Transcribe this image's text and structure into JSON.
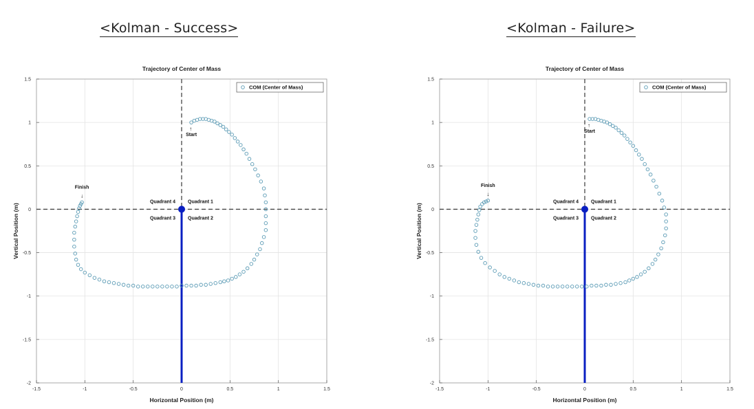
{
  "panels": [
    {
      "heading": "<Kolman - Success>"
    },
    {
      "heading": "<Kolman - Failure>"
    }
  ],
  "chart_data": [
    {
      "type": "scatter",
      "title": "Trajectory of Center of Mass",
      "xlabel": "Horizontal Position (m)",
      "ylabel": "Vertical Position (m)",
      "xlim": [
        -1.5,
        1.5
      ],
      "ylim": [
        -2,
        1.5
      ],
      "xticks": [
        -1.5,
        -1,
        -0.5,
        0,
        0.5,
        1,
        1.5
      ],
      "xtick_labels": [
        "-1.5",
        "-1",
        "-0.5",
        "0",
        "0.5",
        "1",
        "1.5"
      ],
      "yticks": [
        -2,
        -1.5,
        -1,
        -0.5,
        0,
        0.5,
        1,
        1.5
      ],
      "ytick_labels": [
        "-2",
        "-1.5",
        "-1",
        "-0.5",
        "0",
        "0.5",
        "1",
        "1.5"
      ],
      "grid": true,
      "legend": {
        "position": "top-right",
        "entries": [
          "COM (Center of Mass)"
        ]
      },
      "series_color": "#5b9bb5",
      "origin_color": "#0a1fc2",
      "axis_color": "#444444",
      "annotations": {
        "start_arrow": "↑",
        "start": "Start",
        "finish_arrow": "↓",
        "finish": "Finish",
        "q1": "Quadrant 1",
        "q2": "Quadrant 2",
        "q3": "Quadrant 3",
        "q4": "Quadrant 4"
      },
      "pole": {
        "x": 0,
        "y_from": 0,
        "y_to": -2
      },
      "series": [
        {
          "name": "COM (Center of Mass)",
          "x": [
            0.1,
            0.13,
            0.16,
            0.19,
            0.22,
            0.25,
            0.28,
            0.31,
            0.34,
            0.37,
            0.4,
            0.43,
            0.46,
            0.49,
            0.52,
            0.55,
            0.58,
            0.61,
            0.64,
            0.67,
            0.7,
            0.73,
            0.76,
            0.79,
            0.82,
            0.85,
            0.86,
            0.87,
            0.87,
            0.87,
            0.87,
            0.87,
            0.85,
            0.83,
            0.81,
            0.78,
            0.75,
            0.72,
            0.68,
            0.64,
            0.6,
            0.56,
            0.52,
            0.48,
            0.44,
            0.4,
            0.35,
            0.3,
            0.25,
            0.2,
            0.15,
            0.1,
            0.05,
            0.0,
            -0.05,
            -0.1,
            -0.15,
            -0.2,
            -0.25,
            -0.3,
            -0.35,
            -0.4,
            -0.45,
            -0.5,
            -0.55,
            -0.6,
            -0.65,
            -0.7,
            -0.75,
            -0.8,
            -0.85,
            -0.9,
            -0.95,
            -1.0,
            -1.04,
            -1.07,
            -1.09,
            -1.1,
            -1.11,
            -1.11,
            -1.11,
            -1.1,
            -1.09,
            -1.08,
            -1.07,
            -1.06,
            -1.05,
            -1.04,
            -1.03
          ],
          "y": [
            1.0,
            1.02,
            1.03,
            1.04,
            1.04,
            1.04,
            1.03,
            1.02,
            1.01,
            0.99,
            0.97,
            0.95,
            0.92,
            0.89,
            0.86,
            0.82,
            0.78,
            0.74,
            0.69,
            0.64,
            0.58,
            0.52,
            0.46,
            0.39,
            0.32,
            0.24,
            0.16,
            0.08,
            0.0,
            -0.08,
            -0.16,
            -0.24,
            -0.32,
            -0.39,
            -0.46,
            -0.52,
            -0.58,
            -0.63,
            -0.68,
            -0.72,
            -0.75,
            -0.78,
            -0.8,
            -0.82,
            -0.83,
            -0.84,
            -0.85,
            -0.86,
            -0.87,
            -0.87,
            -0.88,
            -0.88,
            -0.88,
            -0.88,
            -0.89,
            -0.89,
            -0.89,
            -0.89,
            -0.89,
            -0.89,
            -0.89,
            -0.89,
            -0.89,
            -0.88,
            -0.88,
            -0.87,
            -0.86,
            -0.85,
            -0.84,
            -0.83,
            -0.81,
            -0.79,
            -0.76,
            -0.73,
            -0.69,
            -0.64,
            -0.58,
            -0.51,
            -0.43,
            -0.35,
            -0.27,
            -0.2,
            -0.14,
            -0.08,
            -0.03,
            0.01,
            0.04,
            0.06,
            0.08
          ]
        }
      ]
    },
    {
      "type": "scatter",
      "title": "Trajectory of Center of Mass",
      "xlabel": "Horizontal Position (m)",
      "ylabel": "Vertical Position (m)",
      "xlim": [
        -1.5,
        1.5
      ],
      "ylim": [
        -2,
        1.5
      ],
      "xticks": [
        -1.5,
        -1,
        -0.5,
        0,
        0.5,
        1,
        1.5
      ],
      "xtick_labels": [
        "-1.5",
        "-1",
        "-0.5",
        "0",
        "0.5",
        "1",
        "1.5"
      ],
      "yticks": [
        -2,
        -1.5,
        -1,
        -0.5,
        0,
        0.5,
        1,
        1.5
      ],
      "ytick_labels": [
        "-2",
        "-1.5",
        "-1",
        "-0.5",
        "0",
        "0.5",
        "1",
        "1.5"
      ],
      "grid": true,
      "legend": {
        "position": "top-right",
        "entries": [
          "COM (Center of Mass)"
        ]
      },
      "series_color": "#5b9bb5",
      "origin_color": "#0a1fc2",
      "axis_color": "#444444",
      "annotations": {
        "start_arrow": "↑",
        "start": "Start",
        "finish_arrow": "↓",
        "finish": "Finish",
        "q1": "Quadrant 1",
        "q2": "Quadrant 2",
        "q3": "Quadrant 3",
        "q4": "Quadrant 4"
      },
      "pole": {
        "x": 0,
        "y_from": 0,
        "y_to": -2
      },
      "series": [
        {
          "name": "COM (Center of Mass)",
          "x": [
            0.05,
            0.08,
            0.11,
            0.14,
            0.17,
            0.2,
            0.23,
            0.26,
            0.29,
            0.32,
            0.35,
            0.38,
            0.41,
            0.44,
            0.47,
            0.5,
            0.53,
            0.56,
            0.59,
            0.62,
            0.65,
            0.68,
            0.71,
            0.74,
            0.77,
            0.8,
            0.82,
            0.84,
            0.84,
            0.84,
            0.83,
            0.81,
            0.79,
            0.76,
            0.73,
            0.7,
            0.66,
            0.62,
            0.58,
            0.54,
            0.5,
            0.46,
            0.42,
            0.37,
            0.32,
            0.27,
            0.22,
            0.17,
            0.12,
            0.07,
            0.02,
            -0.03,
            -0.08,
            -0.13,
            -0.18,
            -0.23,
            -0.28,
            -0.33,
            -0.38,
            -0.43,
            -0.48,
            -0.53,
            -0.58,
            -0.63,
            -0.68,
            -0.73,
            -0.78,
            -0.83,
            -0.88,
            -0.93,
            -0.98,
            -1.03,
            -1.07,
            -1.1,
            -1.12,
            -1.13,
            -1.13,
            -1.12,
            -1.11,
            -1.1,
            -1.09,
            -1.08,
            -1.06,
            -1.04,
            -1.02,
            -1.0
          ],
          "y": [
            1.04,
            1.04,
            1.04,
            1.03,
            1.02,
            1.01,
            1.0,
            0.98,
            0.96,
            0.94,
            0.91,
            0.88,
            0.85,
            0.81,
            0.77,
            0.73,
            0.68,
            0.63,
            0.58,
            0.52,
            0.46,
            0.4,
            0.33,
            0.26,
            0.18,
            0.1,
            0.02,
            -0.06,
            -0.14,
            -0.22,
            -0.3,
            -0.38,
            -0.45,
            -0.52,
            -0.58,
            -0.63,
            -0.68,
            -0.72,
            -0.75,
            -0.78,
            -0.8,
            -0.82,
            -0.84,
            -0.85,
            -0.86,
            -0.87,
            -0.87,
            -0.88,
            -0.88,
            -0.88,
            -0.89,
            -0.89,
            -0.89,
            -0.89,
            -0.89,
            -0.89,
            -0.89,
            -0.89,
            -0.89,
            -0.88,
            -0.88,
            -0.87,
            -0.86,
            -0.85,
            -0.84,
            -0.82,
            -0.8,
            -0.78,
            -0.75,
            -0.71,
            -0.67,
            -0.62,
            -0.56,
            -0.49,
            -0.41,
            -0.33,
            -0.25,
            -0.18,
            -0.12,
            -0.06,
            -0.01,
            0.03,
            0.06,
            0.08,
            0.09,
            0.1
          ]
        }
      ]
    }
  ]
}
